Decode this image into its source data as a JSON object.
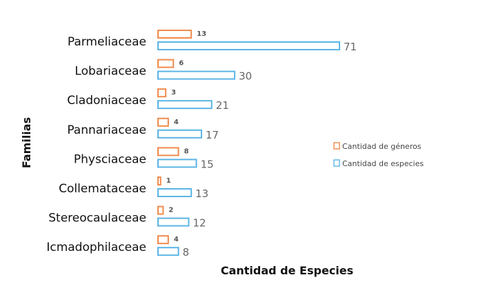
{
  "chart_data": {
    "type": "bar",
    "orientation": "horizontal",
    "categories": [
      "Parmeliaceae",
      "Lobariaceae",
      "Cladoniaceae",
      "Pannariaceae",
      "Physciaceae",
      "Collemataceae",
      "Stereocaulaceae",
      "Icmadophilaceae"
    ],
    "series": [
      {
        "name": "Cantidad de géneros",
        "values": [
          13,
          6,
          3,
          4,
          8,
          1,
          2,
          4
        ],
        "color": "#f08a4b"
      },
      {
        "name": "Cantidad de especies",
        "values": [
          71,
          30,
          21,
          17,
          15,
          13,
          12,
          8
        ],
        "color": "#5ab4e5"
      }
    ],
    "xlabel": "Cantidad de Especies",
    "ylabel": "Familias",
    "xlim": [
      0,
      75
    ],
    "grid": false,
    "legend_position": "right"
  }
}
